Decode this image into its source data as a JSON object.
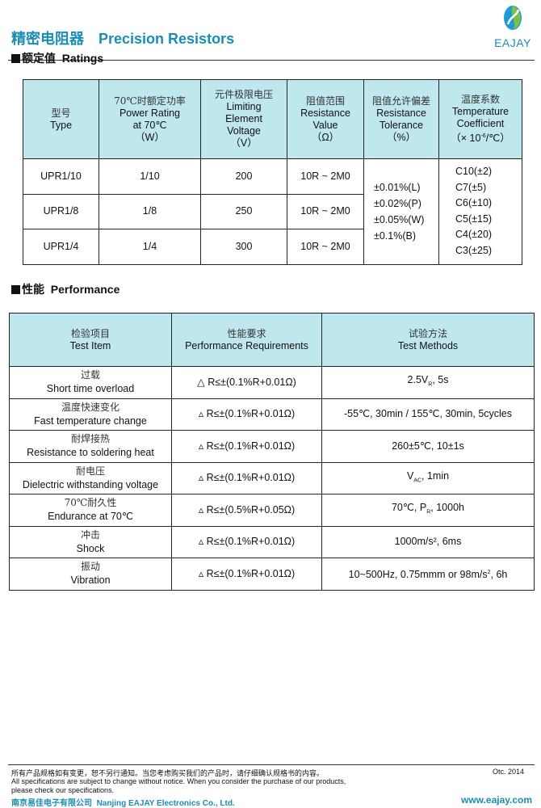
{
  "header": {
    "title_cn": "精密电阻器",
    "title_en": "Precision Resistors",
    "logo_text": "EAJAY",
    "brand_color": "#1b8db4"
  },
  "ratings": {
    "heading_cn": "额定值",
    "heading_en": "Ratings",
    "columns": [
      {
        "cn": "型号",
        "en": [
          "Type"
        ]
      },
      {
        "cn": "70℃时额定功率",
        "en": [
          "Power Rating",
          "at 70℃",
          "（W）"
        ]
      },
      {
        "cn": "元件极限电压",
        "en": [
          "Limiting",
          "Element",
          "Voltage",
          "（V）"
        ]
      },
      {
        "cn": "阻值范围",
        "en": [
          "Resistance",
          "Value",
          "（Ω）"
        ]
      },
      {
        "cn": "阻值允许偏差",
        "en": [
          "Resistance",
          "Tolerance",
          "（%）"
        ]
      },
      {
        "cn": "温度系数",
        "en": [
          "Temperature",
          "Coefficient",
          "（× 10",
          "-6",
          "/℃）"
        ]
      }
    ],
    "rows": [
      {
        "type": "UPR1/10",
        "power": "1/10",
        "voltage": "200",
        "range": "10R ~ 2M0"
      },
      {
        "type": "UPR1/8",
        "power": "1/8",
        "voltage": "250",
        "range": "10R ~ 2M0"
      },
      {
        "type": "UPR1/4",
        "power": "1/4",
        "voltage": "300",
        "range": "10R ~ 2M0"
      }
    ],
    "tolerances": [
      "±0.01%(L)",
      "±0.02%(P)",
      "±0.05%(W)",
      "±0.1%(B)"
    ],
    "tcr": [
      "C10(±2)",
      "C7(±5)",
      "C6(±10)",
      "C5(±15)",
      "C4(±20)",
      "C3(±25)"
    ]
  },
  "performance": {
    "heading_cn": "性能",
    "heading_en": "Performance",
    "columns": [
      {
        "cn": "检验项目",
        "en": "Test Item"
      },
      {
        "cn": "性能要求",
        "en": "Performance Requirements"
      },
      {
        "cn": "试验方法",
        "en": "Test Methods"
      }
    ],
    "rows": [
      {
        "cn": "过载",
        "en": "Short time overload",
        "req": "△ R≤±(0.1%R+0.01Ω)",
        "method": "2.5V",
        "method_sub": "R",
        "method_tail": ", 5s"
      },
      {
        "cn": "温度快速变化",
        "en": "Fast temperature change",
        "req": "▵ R≤±(0.1%R+0.01Ω)",
        "method": "-55℃, 30min / 155℃, 30min, 5cycles"
      },
      {
        "cn": "耐焊接热",
        "en": "Resistance to soldering heat",
        "req": "▵ R≤±(0.1%R+0.01Ω)",
        "method": "260±5℃, 10±1s"
      },
      {
        "cn": "耐电压",
        "en": "Dielectric withstanding voltage",
        "req": "▵ R≤±(0.1%R+0.01Ω)",
        "method": "V",
        "method_sub": "AC",
        "method_tail": ", 1min"
      },
      {
        "cn": "70℃耐久性",
        "en": "Endurance at 70℃",
        "req": "▵ R≤±(0.5%R+0.05Ω)",
        "method": "70℃, P",
        "method_sub": "R",
        "method_tail": ", 1000h"
      },
      {
        "cn": "冲击",
        "en": "Shock",
        "req": "▵ R≤±(0.1%R+0.01Ω)",
        "method": "1000m/s², 6ms"
      },
      {
        "cn": "振动",
        "en": "Vibration",
        "req": "▵ R≤±(0.1%R+0.01Ω)",
        "method": "10~500Hz, 0.75mmm or 98m/s",
        "method_sup": "2",
        "method_tail": ", 6h"
      }
    ]
  },
  "footer": {
    "notice_cn": "所有产品规格如有变更，恕不另行通知。当您考虑购买我们的产品时，请仔细确认规格书的内容。",
    "notice_en_1": "All specifications are subject to change without notice. When you consider the purchase of our products,",
    "notice_en_2": "please check our specifications.",
    "date": "Otc. 2014",
    "company_cn": "南京易佳电子有限公司",
    "company_en": "Nanjing EAJAY Electronics Co., Ltd.",
    "website": "www.eajay.com"
  }
}
